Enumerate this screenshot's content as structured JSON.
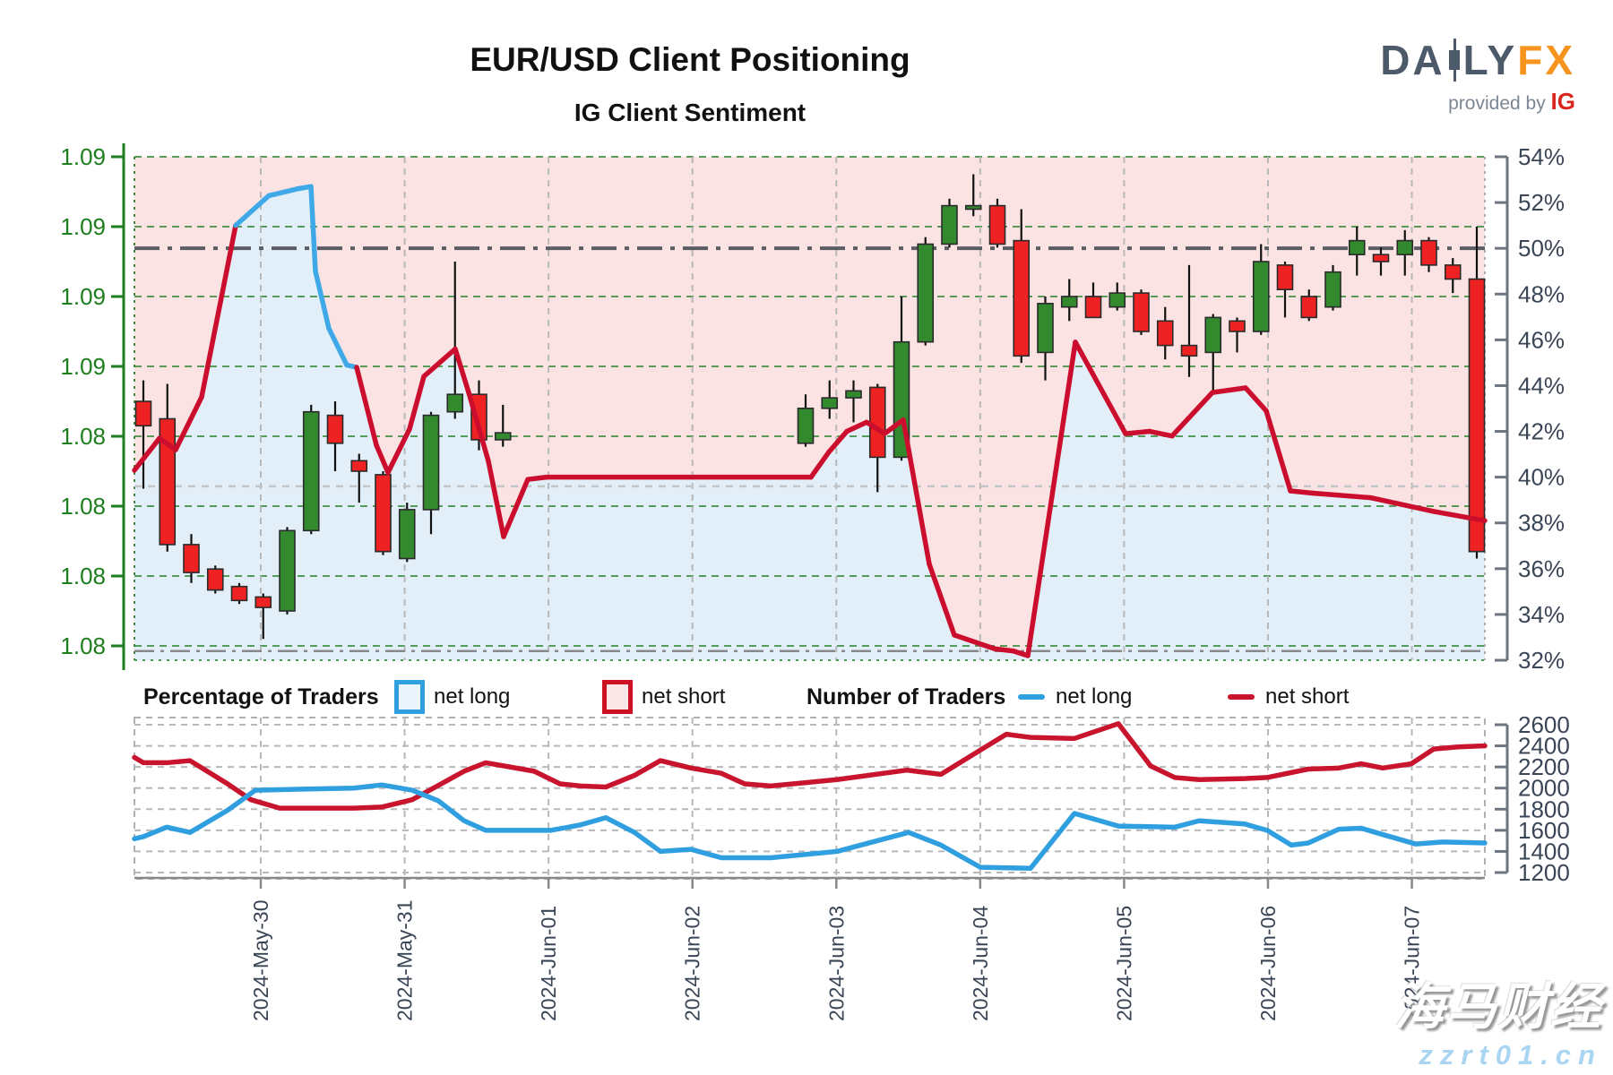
{
  "header": {
    "title": "EUR/USD Client Positioning",
    "subtitle": "IG Client Sentiment",
    "logo": {
      "part1": "DA",
      "part2": "LY",
      "part3": "FX",
      "provided_by": "provided by",
      "ig": "IG"
    }
  },
  "legend": {
    "pct_title": "Percentage of Traders",
    "pct_net_long": "net long",
    "pct_net_short": "net short",
    "num_title": "Number of Traders",
    "num_net_long": "net long",
    "num_net_short": "net short"
  },
  "watermark": {
    "line1": "海马财经",
    "line2": "zzrt01.cn"
  },
  "colors": {
    "candle_up": "#338a2e",
    "candle_down": "#ee2222",
    "candle_stroke": "#2b2b2b",
    "sent_long_line": "#3fa9e8",
    "sent_short_line": "#cc0e2e",
    "fill_short": "#fbe3e3",
    "fill_long": "#e2eef8",
    "grid_price": "#3e8e41",
    "grid_date": "#b8b8b8",
    "axis_left": "#1e7d1e",
    "axis_right_text": "#3a4556",
    "ref50": "#5a5e63",
    "ref_mid": "#c3c6c9",
    "ref_low": "#87898c",
    "traders_long": "#2f9fe0",
    "traders_short": "#c9142e"
  },
  "chart_data": [
    {
      "type": "candlestick+sentiment-line",
      "title": "IG Client Sentiment",
      "left_axis_labels": [
        "1.09",
        "1.09",
        "1.09",
        "1.09",
        "1.08",
        "1.08",
        "1.08",
        "1.08"
      ],
      "left_axis_prices": [
        1.092,
        1.09,
        1.088,
        1.086,
        1.084,
        1.082,
        1.08,
        1.078
      ],
      "right_axis_labels": [
        "54%",
        "52%",
        "50%",
        "48%",
        "46%",
        "44%",
        "42%",
        "40%",
        "38%",
        "36%",
        "34%",
        "32%"
      ],
      "right_axis_range": [
        32,
        54
      ],
      "dates": [
        "2024-May-30",
        "2024-May-31",
        "2024-Jun-01",
        "2024-Jun-02",
        "2024-Jun-03",
        "2024-Jun-04",
        "2024-Jun-05",
        "2024-Jun-06",
        "2024-Jun-07"
      ],
      "ref_lines_pct": {
        "dash_dot_dark": 50.0,
        "dashed_light": 39.6,
        "dash_dot_low": 32.4
      },
      "candles_ohlc": [
        [
          1.085,
          1.0856,
          1.0825,
          1.0843
        ],
        [
          1.0845,
          1.0855,
          1.0807,
          1.0809
        ],
        [
          1.0809,
          1.0812,
          1.0798,
          1.0801
        ],
        [
          1.0802,
          1.0803,
          1.0795,
          1.0796
        ],
        [
          1.0797,
          1.0798,
          1.0792,
          1.0793
        ],
        [
          1.0794,
          1.0795,
          1.0782,
          1.0791
        ],
        [
          1.079,
          1.0814,
          1.0789,
          1.0813
        ],
        [
          1.0813,
          1.0849,
          1.0812,
          1.0847
        ],
        [
          1.0846,
          1.085,
          1.083,
          1.0838
        ],
        [
          1.0833,
          1.0835,
          1.0821,
          1.083
        ],
        [
          1.0829,
          1.083,
          1.0806,
          1.0807
        ],
        [
          1.0805,
          1.0821,
          1.0804,
          1.0819
        ],
        [
          1.0819,
          1.0847,
          1.0812,
          1.0846
        ],
        [
          1.0847,
          1.089,
          1.0845,
          1.0852
        ],
        [
          1.0852,
          1.0856,
          1.0836,
          1.0839
        ],
        [
          1.0839,
          1.0849,
          1.0837,
          1.0841
        ],
        [
          1.0838,
          1.0852,
          1.0837,
          1.0848
        ],
        [
          1.0848,
          1.0856,
          1.0845,
          1.0851
        ],
        [
          1.0851,
          1.0856,
          1.0844,
          1.0853
        ],
        [
          1.0854,
          1.0855,
          1.0824,
          1.0834
        ],
        [
          1.0834,
          1.088,
          1.0833,
          1.0867
        ],
        [
          1.0867,
          1.0897,
          1.0866,
          1.0895
        ],
        [
          1.0895,
          1.0908,
          1.0894,
          1.0906
        ],
        [
          1.0905,
          1.0915,
          1.0903,
          1.0906
        ],
        [
          1.0906,
          1.0908,
          1.0894,
          1.0895
        ],
        [
          1.0896,
          1.0905,
          1.0861,
          1.0863
        ],
        [
          1.0864,
          1.088,
          1.0856,
          1.0878
        ],
        [
          1.0877,
          1.0885,
          1.0873,
          1.088
        ],
        [
          1.088,
          1.0884,
          1.0874,
          1.0874
        ],
        [
          1.0877,
          1.0884,
          1.0876,
          1.0881
        ],
        [
          1.0881,
          1.0882,
          1.0869,
          1.087
        ],
        [
          1.0873,
          1.0877,
          1.0862,
          1.0866
        ],
        [
          1.0866,
          1.0889,
          1.0857,
          1.0863
        ],
        [
          1.0864,
          1.0875,
          1.0852,
          1.0874
        ],
        [
          1.0873,
          1.0874,
          1.0864,
          1.087
        ],
        [
          1.087,
          1.0895,
          1.0869,
          1.089
        ],
        [
          1.0889,
          1.089,
          1.0874,
          1.0882
        ],
        [
          1.088,
          1.0882,
          1.0873,
          1.0874
        ],
        [
          1.0877,
          1.0889,
          1.0876,
          1.0887
        ],
        [
          1.0892,
          1.09,
          1.0886,
          1.0896
        ],
        [
          1.0892,
          1.0894,
          1.0886,
          1.089
        ],
        [
          1.0892,
          1.0899,
          1.0886,
          1.0896
        ],
        [
          1.0896,
          1.0897,
          1.0887,
          1.0889
        ],
        [
          1.0889,
          1.0891,
          1.0881,
          1.0885
        ],
        [
          1.0885,
          1.09,
          1.0805,
          1.0807
        ]
      ],
      "sentiment_pct_points": [
        [
          150,
          40.3
        ],
        [
          178,
          41.7
        ],
        [
          196,
          41.2
        ],
        [
          225,
          43.5
        ],
        [
          263,
          51.0
        ],
        [
          300,
          52.3
        ],
        [
          332,
          52.6
        ],
        [
          347,
          52.7
        ],
        [
          352,
          49.0
        ],
        [
          367,
          46.5
        ],
        [
          387,
          44.9
        ],
        [
          398,
          44.8
        ],
        [
          420,
          41.4
        ],
        [
          433,
          40.2
        ],
        [
          457,
          42.1
        ],
        [
          473,
          44.4
        ],
        [
          508,
          45.6
        ],
        [
          523,
          43.7
        ],
        [
          545,
          40.7
        ],
        [
          562,
          37.4
        ],
        [
          589,
          39.9
        ],
        [
          610,
          40.0
        ],
        [
          905,
          40.0
        ],
        [
          925,
          41.1
        ],
        [
          945,
          42.0
        ],
        [
          967,
          42.4
        ],
        [
          987,
          41.9
        ],
        [
          1008,
          42.5
        ],
        [
          1037,
          36.2
        ],
        [
          1065,
          33.1
        ],
        [
          1110,
          32.5
        ],
        [
          1131,
          32.4
        ],
        [
          1147,
          32.2
        ],
        [
          1200,
          45.9
        ],
        [
          1256,
          41.9
        ],
        [
          1283,
          42.0
        ],
        [
          1308,
          41.8
        ],
        [
          1353,
          43.7
        ],
        [
          1390,
          43.9
        ],
        [
          1413,
          42.9
        ],
        [
          1440,
          39.4
        ],
        [
          1465,
          39.3
        ],
        [
          1530,
          39.1
        ],
        [
          1600,
          38.5
        ],
        [
          1657,
          38.1
        ]
      ],
      "sentiment_blue_x_range": [
        263,
        398
      ]
    },
    {
      "type": "line",
      "title": "Number of Traders",
      "right_axis_labels": [
        "2600",
        "2400",
        "2200",
        "2000",
        "1800",
        "1600",
        "1400",
        "1200"
      ],
      "right_axis_range": [
        1200,
        2600
      ],
      "series": [
        {
          "name": "net short",
          "color": "#c9142e",
          "points": [
            [
              150,
              2290
            ],
            [
              160,
              2240
            ],
            [
              186,
              2240
            ],
            [
              212,
              2260
            ],
            [
              254,
              2040
            ],
            [
              280,
              1890
            ],
            [
              312,
              1810
            ],
            [
              395,
              1810
            ],
            [
              426,
              1820
            ],
            [
              460,
              1890
            ],
            [
              488,
              2020
            ],
            [
              518,
              2160
            ],
            [
              542,
              2240
            ],
            [
              569,
              2200
            ],
            [
              596,
              2160
            ],
            [
              625,
              2040
            ],
            [
              648,
              2020
            ],
            [
              676,
              2010
            ],
            [
              708,
              2120
            ],
            [
              737,
              2260
            ],
            [
              771,
              2190
            ],
            [
              805,
              2140
            ],
            [
              831,
              2040
            ],
            [
              860,
              2020
            ],
            [
              934,
              2080
            ],
            [
              1012,
              2170
            ],
            [
              1050,
              2130
            ],
            [
              1094,
              2360
            ],
            [
              1123,
              2510
            ],
            [
              1150,
              2480
            ],
            [
              1199,
              2470
            ],
            [
              1248,
              2610
            ],
            [
              1284,
              2210
            ],
            [
              1311,
              2100
            ],
            [
              1338,
              2080
            ],
            [
              1389,
              2090
            ],
            [
              1414,
              2100
            ],
            [
              1460,
              2180
            ],
            [
              1494,
              2190
            ],
            [
              1519,
              2230
            ],
            [
              1543,
              2190
            ],
            [
              1575,
              2230
            ],
            [
              1600,
              2370
            ],
            [
              1627,
              2390
            ],
            [
              1657,
              2400
            ]
          ]
        },
        {
          "name": "net long",
          "color": "#2f9fe0",
          "points": [
            [
              150,
              1520
            ],
            [
              160,
              1540
            ],
            [
              186,
              1630
            ],
            [
              212,
              1580
            ],
            [
              254,
              1790
            ],
            [
              285,
              1980
            ],
            [
              339,
              1990
            ],
            [
              395,
              2000
            ],
            [
              426,
              2030
            ],
            [
              460,
              1980
            ],
            [
              489,
              1880
            ],
            [
              518,
              1690
            ],
            [
              542,
              1600
            ],
            [
              615,
              1600
            ],
            [
              647,
              1650
            ],
            [
              676,
              1720
            ],
            [
              708,
              1580
            ],
            [
              737,
              1400
            ],
            [
              771,
              1420
            ],
            [
              805,
              1340
            ],
            [
              860,
              1340
            ],
            [
              934,
              1400
            ],
            [
              1014,
              1580
            ],
            [
              1050,
              1460
            ],
            [
              1094,
              1250
            ],
            [
              1150,
              1240
            ],
            [
              1199,
              1760
            ],
            [
              1248,
              1640
            ],
            [
              1311,
              1630
            ],
            [
              1338,
              1690
            ],
            [
              1389,
              1660
            ],
            [
              1414,
              1600
            ],
            [
              1441,
              1460
            ],
            [
              1460,
              1480
            ],
            [
              1494,
              1610
            ],
            [
              1519,
              1620
            ],
            [
              1543,
              1560
            ],
            [
              1580,
              1470
            ],
            [
              1610,
              1490
            ],
            [
              1657,
              1480
            ]
          ]
        }
      ],
      "dates": [
        "2024-May-30",
        "2024-May-31",
        "2024-Jun-01",
        "2024-Jun-02",
        "2024-Jun-03",
        "2024-Jun-04",
        "2024-Jun-05",
        "2024-Jun-06",
        "2024-Jun-07"
      ]
    }
  ]
}
